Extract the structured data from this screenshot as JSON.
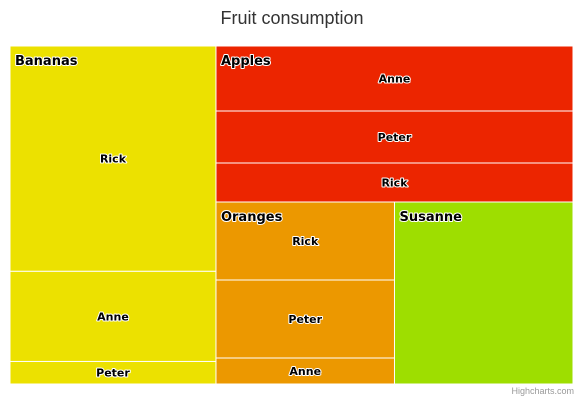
{
  "chart_data": {
    "type": "treemap",
    "title": "Fruit consumption",
    "credit": "Highcharts.com",
    "groups": [
      {
        "name": "Bananas",
        "color": "#ece100",
        "children": [
          {
            "name": "Rick",
            "value": 10
          },
          {
            "name": "Anne",
            "value": 4
          },
          {
            "name": "Peter",
            "value": 1
          }
        ]
      },
      {
        "name": "Apples",
        "color": "#ec2500",
        "children": [
          {
            "name": "Anne",
            "value": 5
          },
          {
            "name": "Peter",
            "value": 4
          },
          {
            "name": "Rick",
            "value": 3
          }
        ]
      },
      {
        "name": "Oranges",
        "color": "#ec9800",
        "children": [
          {
            "name": "Rick",
            "value": 3
          },
          {
            "name": "Peter",
            "value": 3
          },
          {
            "name": "Anne",
            "value": 1
          }
        ]
      },
      {
        "name": "Susanne",
        "color": "#9ede00",
        "children": [
          {
            "name": "Susanne",
            "value": 7,
            "hide_label": true
          }
        ]
      }
    ]
  }
}
